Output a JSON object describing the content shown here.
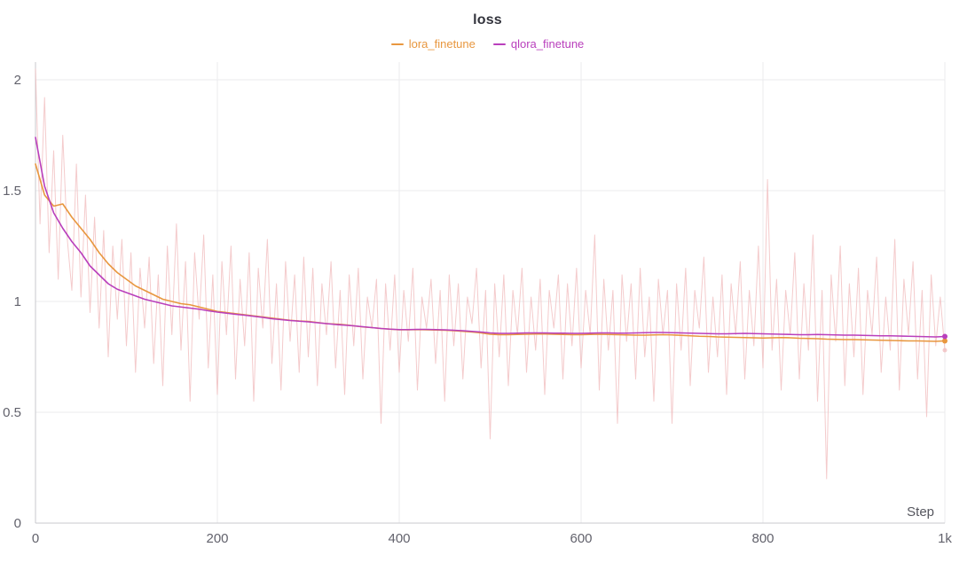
{
  "chart_data": {
    "type": "line",
    "title": "loss",
    "xlabel": "Step",
    "ylabel": "",
    "xlim": [
      0,
      1000
    ],
    "ylim": [
      0,
      2.08
    ],
    "grid": true,
    "legend_position": "top-center",
    "background": "#ffffff",
    "axis_color": "#c9c9ce",
    "grid_color": "#ebebee",
    "tick_label_color": "#62626c",
    "axis_title_color": "#55565e",
    "x_ticks": {
      "values": [
        0,
        200,
        400,
        600,
        800,
        1000
      ],
      "labels": [
        "0",
        "200",
        "400",
        "600",
        "800",
        "1k"
      ]
    },
    "y_ticks": {
      "values": [
        0,
        0.5,
        1,
        1.5,
        2
      ],
      "labels": [
        "0",
        "0.5",
        "1",
        "1.5",
        "2"
      ]
    },
    "series": [
      {
        "name": "lora_finetune",
        "color": "#e8973f",
        "step": 10,
        "values": [
          1.62,
          1.48,
          1.43,
          1.44,
          1.38,
          1.33,
          1.28,
          1.22,
          1.17,
          1.13,
          1.1,
          1.07,
          1.05,
          1.03,
          1.01,
          1.0,
          0.99,
          0.985,
          0.975,
          0.965,
          0.955,
          0.95,
          0.945,
          0.94,
          0.935,
          0.93,
          0.925,
          0.92,
          0.915,
          0.912,
          0.91,
          0.905,
          0.9,
          0.898,
          0.895,
          0.89,
          0.885,
          0.882,
          0.878,
          0.875,
          0.872,
          0.872,
          0.873,
          0.872,
          0.871,
          0.87,
          0.868,
          0.865,
          0.862,
          0.858,
          0.852,
          0.85,
          0.85,
          0.851,
          0.852,
          0.853,
          0.853,
          0.852,
          0.851,
          0.85,
          0.85,
          0.851,
          0.852,
          0.851,
          0.85,
          0.849,
          0.848,
          0.848,
          0.849,
          0.85,
          0.849,
          0.847,
          0.845,
          0.843,
          0.842,
          0.84,
          0.839,
          0.838,
          0.837,
          0.836,
          0.835,
          0.836,
          0.837,
          0.836,
          0.834,
          0.833,
          0.832,
          0.83,
          0.829,
          0.828,
          0.828,
          0.827,
          0.826,
          0.825,
          0.824,
          0.823,
          0.822,
          0.822,
          0.821,
          0.82,
          0.822
        ]
      },
      {
        "name": "qlora_finetune",
        "color": "#b93fbc",
        "step": 10,
        "values": [
          1.74,
          1.52,
          1.4,
          1.33,
          1.27,
          1.22,
          1.16,
          1.12,
          1.08,
          1.055,
          1.04,
          1.025,
          1.01,
          1.0,
          0.99,
          0.98,
          0.975,
          0.97,
          0.965,
          0.958,
          0.952,
          0.947,
          0.942,
          0.938,
          0.933,
          0.928,
          0.922,
          0.918,
          0.914,
          0.911,
          0.908,
          0.904,
          0.9,
          0.896,
          0.893,
          0.89,
          0.886,
          0.882,
          0.878,
          0.875,
          0.873,
          0.873,
          0.874,
          0.874,
          0.873,
          0.872,
          0.87,
          0.868,
          0.865,
          0.862,
          0.858,
          0.856,
          0.856,
          0.857,
          0.858,
          0.858,
          0.858,
          0.857,
          0.857,
          0.856,
          0.856,
          0.857,
          0.858,
          0.858,
          0.857,
          0.857,
          0.858,
          0.859,
          0.86,
          0.86,
          0.859,
          0.858,
          0.857,
          0.856,
          0.855,
          0.854,
          0.854,
          0.855,
          0.856,
          0.855,
          0.854,
          0.853,
          0.852,
          0.851,
          0.85,
          0.85,
          0.851,
          0.85,
          0.849,
          0.848,
          0.848,
          0.847,
          0.846,
          0.845,
          0.845,
          0.844,
          0.843,
          0.842,
          0.841,
          0.84,
          0.842
        ]
      }
    ],
    "raw_series": [
      {
        "name": "raw_loss",
        "color": "#f0b9bb",
        "opacity": 0.75,
        "step": 5,
        "values": [
          2.05,
          1.35,
          1.92,
          1.22,
          1.68,
          1.1,
          1.75,
          1.28,
          1.05,
          1.62,
          1.02,
          1.48,
          0.95,
          1.38,
          0.88,
          1.32,
          0.75,
          1.25,
          0.92,
          1.28,
          0.8,
          1.22,
          0.68,
          1.15,
          0.88,
          1.2,
          0.72,
          1.12,
          0.62,
          1.25,
          0.85,
          1.35,
          0.78,
          1.18,
          0.55,
          1.22,
          0.92,
          1.3,
          0.7,
          1.12,
          0.58,
          1.18,
          0.85,
          1.25,
          0.65,
          1.1,
          0.8,
          1.22,
          0.55,
          1.15,
          0.88,
          1.28,
          0.72,
          1.08,
          0.6,
          1.18,
          0.82,
          1.12,
          0.68,
          1.2,
          0.75,
          1.15,
          0.62,
          1.08,
          0.85,
          1.18,
          0.7,
          1.05,
          0.58,
          1.12,
          0.8,
          1.15,
          0.65,
          1.02,
          0.88,
          1.1,
          0.45,
          1.08,
          0.78,
          1.12,
          0.68,
          1.05,
          0.82,
          1.15,
          0.6,
          1.02,
          0.88,
          1.1,
          0.72,
          1.05,
          0.55,
          1.12,
          0.8,
          1.08,
          0.65,
          1.02,
          0.9,
          1.15,
          0.7,
          1.05,
          0.38,
          1.08,
          0.75,
          1.12,
          0.62,
          1.05,
          0.85,
          1.15,
          0.68,
          1.02,
          0.78,
          1.1,
          0.58,
          1.05,
          0.88,
          1.12,
          0.65,
          1.08,
          0.8,
          1.15,
          0.7,
          1.05,
          0.85,
          1.3,
          0.6,
          1.1,
          0.78,
          1.05,
          0.45,
          1.12,
          0.82,
          1.08,
          0.65,
          1.15,
          0.75,
          1.02,
          0.55,
          1.1,
          0.85,
          1.05,
          0.45,
          1.08,
          0.78,
          1.15,
          0.62,
          1.05,
          0.88,
          1.2,
          0.68,
          1.02,
          0.75,
          1.12,
          0.58,
          1.08,
          0.85,
          1.18,
          0.65,
          1.05,
          0.8,
          1.25,
          0.7,
          1.55,
          0.78,
          1.1,
          0.6,
          1.05,
          0.85,
          1.22,
          0.65,
          1.08,
          0.78,
          1.3,
          0.55,
          1.05,
          0.2,
          1.12,
          0.82,
          1.25,
          0.62,
          1.08,
          0.75,
          1.15,
          0.58,
          1.05,
          0.85,
          1.2,
          0.68,
          1.02,
          0.78,
          1.28,
          0.6,
          1.1,
          0.85,
          1.18,
          0.65,
          1.05,
          0.48,
          1.12,
          0.8,
          1.02,
          0.78
        ]
      }
    ]
  }
}
